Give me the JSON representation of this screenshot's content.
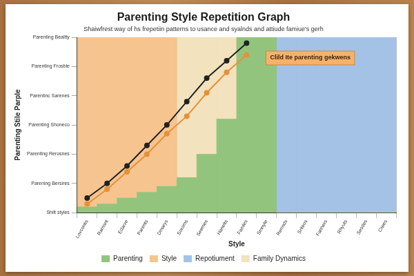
{
  "chart_data": {
    "type": "bar",
    "title": "Parenting Style Repetition Graph",
    "subtitle": "Shaiwfrest way of hs frepetiin patterns to usance and syalnds and attiude famiue's gerh",
    "x_label": "Style",
    "y_label": "Parenting Stile Parple",
    "categories": [
      "Lovcontis",
      "Rarnsnt",
      "Edarve",
      "Parents",
      "Dmarys",
      "Soroms",
      "Seemes",
      "Hanelts",
      "Famles",
      "Smnyte",
      "Rerrnds",
      "Sriteos",
      "Fanhers",
      "Rhyuts",
      "Sesdes",
      "Ciwes"
    ],
    "series": [
      {
        "name": "Parenting",
        "type": "bar",
        "color": "#93c47d",
        "values": [
          0.2,
          0.3,
          0.5,
          0.7,
          0.9,
          1.2,
          2.0,
          3.2,
          6,
          6,
          0,
          0,
          0,
          0,
          0,
          0
        ]
      },
      {
        "name": "Style",
        "type": "bar",
        "color": "#f6c48f",
        "values": [
          5.8,
          5.7,
          5.5,
          5.3,
          5.1,
          0,
          0,
          0,
          0,
          0,
          0,
          0,
          0,
          0,
          0,
          0
        ]
      },
      {
        "name": "Repotiument",
        "type": "bar",
        "color": "#a4c2e6",
        "values": [
          0,
          0,
          0,
          0,
          0,
          0,
          0,
          0,
          0,
          0,
          6,
          6,
          6,
          6,
          6,
          6
        ]
      },
      {
        "name": "Family Dynamics",
        "type": "bar",
        "color": "#f2e2bd",
        "values": [
          0,
          0,
          0,
          0,
          0,
          4.8,
          4.0,
          2.8,
          0,
          0,
          0,
          0,
          0,
          0,
          0,
          0
        ]
      },
      {
        "type": "line",
        "color": "#222222",
        "marker": "circle",
        "line_style": "solid",
        "values": [
          0.5,
          1.0,
          1.6,
          2.3,
          3.0,
          3.8,
          4.6,
          5.2,
          5.8,
          null,
          null,
          null,
          null,
          null,
          null,
          null
        ]
      },
      {
        "type": "line",
        "color": "#e69138",
        "marker": "circle",
        "line_style": "solid",
        "values": [
          0.3,
          0.8,
          1.4,
          2.0,
          2.7,
          3.3,
          4.1,
          4.8,
          5.4,
          null,
          null,
          null,
          null,
          null,
          null,
          null
        ]
      }
    ],
    "annotations": [
      {
        "text": "Clild Ite parenting gekwens"
      }
    ],
    "ylim": [
      0,
      6
    ],
    "yticks": [
      {
        "value": 0,
        "label": "Shilt styles"
      },
      {
        "value": 1,
        "label": "Parening Bersires"
      },
      {
        "value": 2,
        "label": "Parenting Rerosnes"
      },
      {
        "value": 3,
        "label": "Parenting Shoneco"
      },
      {
        "value": 4,
        "label": "Parentinc Sarenes"
      },
      {
        "value": 5,
        "label": "Parenting Frosble"
      },
      {
        "value": 6,
        "label": "Parenting Bealtty"
      }
    ],
    "stacked": true,
    "grid": true,
    "legend": "bottom"
  }
}
